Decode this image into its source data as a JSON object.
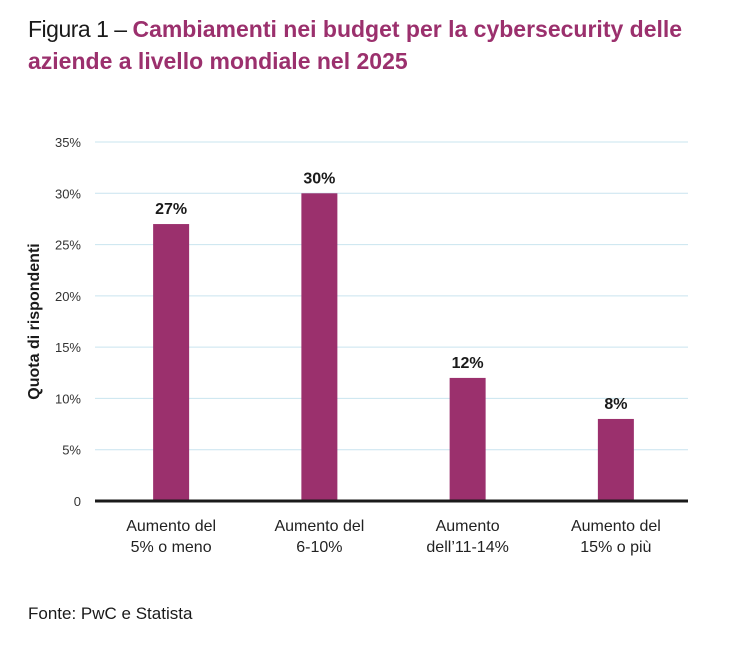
{
  "title": {
    "prefix": "Figura 1 – ",
    "main": "Cambiamenti nei budget per la cybersecurity delle aziende a livello mondiale nel 2025"
  },
  "source": "Fonte: PwC e Statista",
  "colors": {
    "bar": "#9b306d",
    "title_accent": "#9b306d",
    "grid": "#c9e4ef",
    "axis": "#1a1a1a"
  },
  "chart_data": {
    "type": "bar",
    "title": "Cambiamenti nei budget per la cybersecurity delle aziende a livello mondiale nel 2025",
    "xlabel": "",
    "ylabel": "Quota di rispondenti",
    "categories": [
      [
        "Aumento del",
        "5% o meno"
      ],
      [
        "Aumento del",
        "6-10%"
      ],
      [
        "Aumento",
        "dell’11-14%"
      ],
      [
        "Aumento del",
        "15% o più"
      ]
    ],
    "values": [
      27,
      30,
      12,
      8
    ],
    "data_labels": [
      "27%",
      "30%",
      "12%",
      "8%"
    ],
    "ylim": [
      0,
      35
    ],
    "yticks": [
      0,
      5,
      10,
      15,
      20,
      25,
      30,
      35
    ],
    "ytick_labels": [
      "0",
      "5%",
      "10%",
      "15%",
      "20%",
      "25%",
      "30%",
      "35%"
    ],
    "grid": true,
    "legend": "none"
  }
}
